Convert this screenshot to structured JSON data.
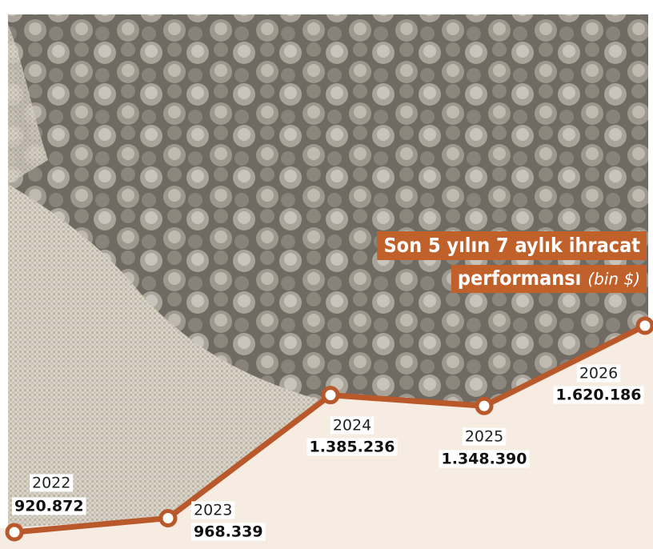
{
  "chart_data": {
    "type": "line",
    "title": [
      "Son 5 yılın 7 aylık ihracat",
      "performansı"
    ],
    "unit": "(bin $)",
    "categories": [
      "2022",
      "2023",
      "2024",
      "2025",
      "2026"
    ],
    "series": [
      {
        "name": "İhracat",
        "color": "#b8582b",
        "values": [
          920872,
          968339,
          1385236,
          1348390,
          1620186
        ],
        "value_labels": [
          "920.872",
          "968.339",
          "1.385.236",
          "1.348.390",
          "1.620.186"
        ]
      }
    ]
  }
}
